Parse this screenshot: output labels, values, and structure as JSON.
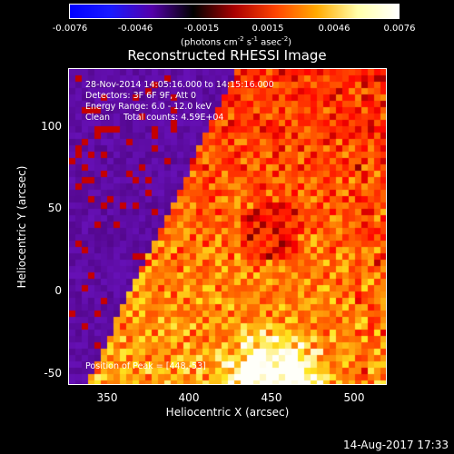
{
  "colorbar": {
    "ticks": [
      "-0.0076",
      "-0.0046",
      "-0.0015",
      "0.0015",
      "0.0046",
      "0.0076"
    ],
    "units": "(photons cm",
    "units_exp1": "-2",
    "units_mid": " s",
    "units_exp2": "-1",
    "units_mid2": " asec",
    "units_exp3": "-2",
    "units_end": ")",
    "colors": [
      "#0000ff",
      "#1a1aff",
      "#5500aa",
      "#000000",
      "#aa0000",
      "#ff4400",
      "#ffaa00",
      "#ffffaa",
      "#ffffff"
    ]
  },
  "title": "Reconstructed RHESSI Image",
  "annotations": {
    "line1": "28-Nov-2014 14:05:16.000 to 14:15:16.000",
    "line2": "Detectors: 3F 6F 9F, Att 0",
    "line3": "Energy Range: 6.0 - 12.0 keV",
    "line4": "Clean     Total counts: 4.59E+04",
    "peak": "Position of Peak = [448,-53]"
  },
  "axes": {
    "xlabel": "Heliocentric X (arcsec)",
    "ylabel": "Heliocentric Y (arcsec)",
    "xticks": [
      "350",
      "400",
      "450",
      "500"
    ],
    "yticks": [
      "100",
      "50",
      "0",
      "-50"
    ]
  },
  "footer": "14-Aug-2017 17:33"
}
